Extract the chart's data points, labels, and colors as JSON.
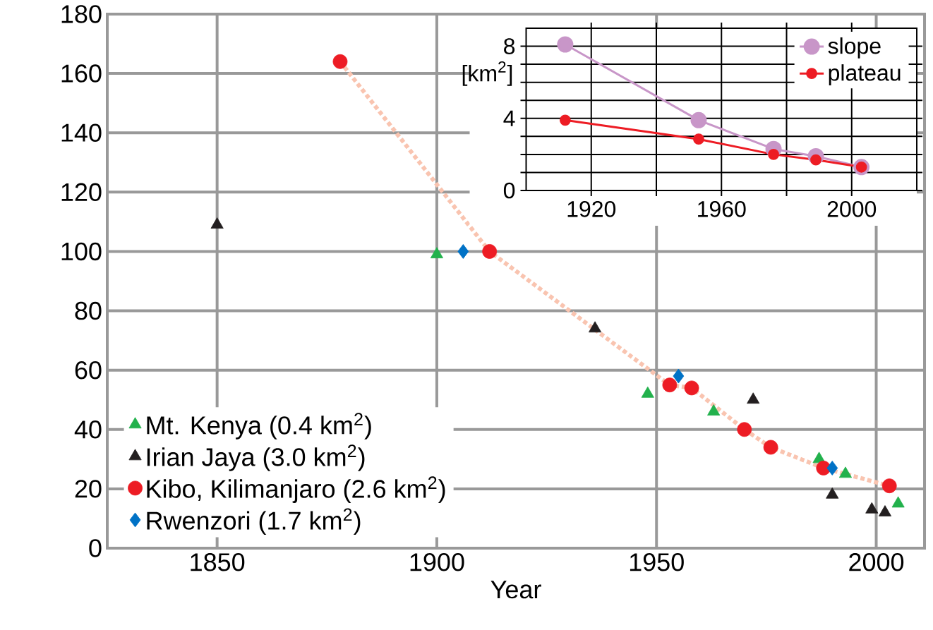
{
  "chart_data": [
    {
      "type": "scatter",
      "xlabel": "Year",
      "xlim": [
        1825,
        2011
      ],
      "ylim": [
        0,
        180
      ],
      "xticks": [
        1850,
        1900,
        1950,
        2000
      ],
      "yticks": [
        0,
        20,
        40,
        60,
        80,
        100,
        120,
        140,
        160,
        180
      ],
      "grid": true,
      "legend": "bottom left",
      "series": [
        {
          "name": "Mt. Kenya (0.4 km$^{2}$)",
          "color": "#22b14c",
          "marker": "triangle",
          "x": [
            1900,
            1948,
            1963,
            1987,
            1993,
            2005
          ],
          "values": [
            99,
            52,
            46,
            30,
            25,
            15
          ]
        },
        {
          "name": "Irian Jaya (3.0 km$^{2}$)",
          "color": "#231f20",
          "marker": "triangle",
          "x": [
            1850,
            1936,
            1972,
            1990,
            1999,
            2002
          ],
          "values": [
            109,
            74,
            50,
            18,
            13,
            12
          ]
        },
        {
          "name": "Kibo, Kilimanjaro (2.6 km$^{2}$)",
          "color": "#ed1c24",
          "marker": "circle",
          "x": [
            1878,
            1912,
            1953,
            1958,
            1970,
            1976,
            1988,
            2003
          ],
          "values": [
            164,
            100,
            55,
            54,
            40,
            34,
            27,
            21
          ]
        },
        {
          "name": "Rwenzori (1.7 km$^{2}$)",
          "color": "#0072c6",
          "marker": "diamond",
          "x": [
            1906,
            1955,
            1990
          ],
          "values": [
            100,
            58,
            27
          ]
        },
        {
          "type": "line",
          "color": "#f9c4b0",
          "marker": "none",
          "line_style": "dotted",
          "x": [
            1878,
            1912,
            1953,
            1958,
            1970,
            1976,
            1988,
            2003
          ],
          "values": [
            164,
            100,
            55,
            54,
            40,
            34,
            27,
            21
          ]
        }
      ]
    },
    {
      "type": "line",
      "ylabel": "[km$^{2}$]",
      "xlim": [
        1900,
        2020
      ],
      "ylim": [
        0,
        9
      ],
      "xticks": [
        1920,
        {
          "value": 1940,
          "label": null
        },
        1960,
        {
          "value": 1980,
          "label": null
        },
        2000
      ],
      "yticks": [
        0,
        {
          "value": 1,
          "label": null
        },
        {
          "value": 2,
          "label": null
        },
        {
          "value": 3,
          "label": null
        },
        4,
        {
          "value": 5,
          "label": null
        },
        {
          "value": 6,
          "label": null
        },
        {
          "value": 7,
          "label": null
        },
        8
      ],
      "grid": true,
      "legend": "top right",
      "marker": "circle",
      "line_style": "solid",
      "series": [
        {
          "name": "slope",
          "color": "#c896c8",
          "x": [
            1912,
            1953,
            1976,
            1989,
            2003
          ],
          "values": [
            8.1,
            3.9,
            2.3,
            1.9,
            1.3
          ]
        },
        {
          "name": "plateau",
          "color": "#ed1c24",
          "x": [
            1912,
            1953,
            1976,
            1989,
            2003
          ],
          "values": [
            3.9,
            2.85,
            2.0,
            1.7,
            1.3
          ]
        }
      ]
    }
  ]
}
